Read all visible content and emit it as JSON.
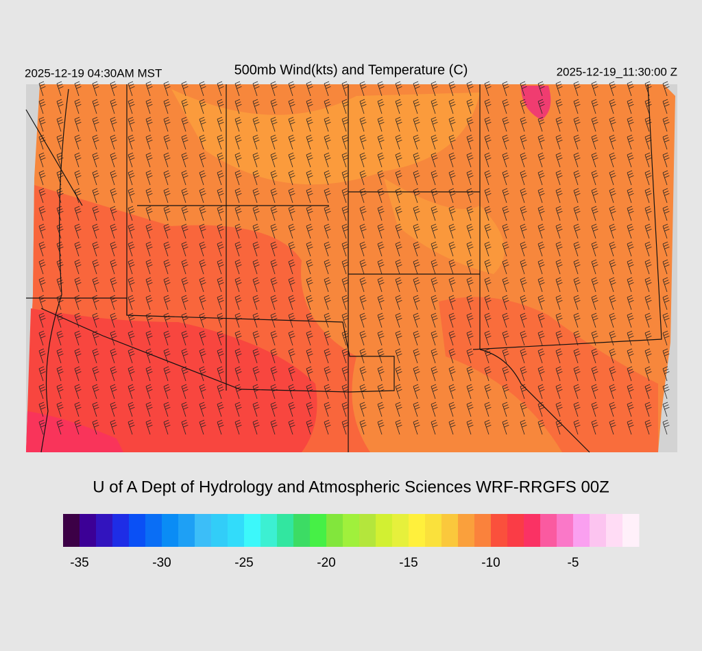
{
  "header": {
    "local_time": "2025-12-19 04:30AM MST",
    "title": "500mb Wind(kts) and Temperature (C)",
    "utc_time": "2025-12-19_11:30:00 Z"
  },
  "credit": "U of A Dept of Hydrology and Atmospheric Sciences WRF-RRGFS 00Z",
  "colorbar": {
    "lim": [
      -36,
      -1
    ],
    "ticks": [
      -35,
      -30,
      -25,
      -20,
      -15,
      -10,
      -5
    ],
    "colors": [
      "#3c0046",
      "#3c0096",
      "#3214be",
      "#1e2de6",
      "#0a50f5",
      "#0a6ef5",
      "#0a8cf5",
      "#1ea0f5",
      "#3cbef8",
      "#32cdf8",
      "#32dcfa",
      "#3cf8fa",
      "#3cf0d2",
      "#32e6a0",
      "#3cdc64",
      "#46f046",
      "#82e63c",
      "#a0f03c",
      "#b4e63c",
      "#d2f032",
      "#e6f03c",
      "#fff03c",
      "#fae13c",
      "#fac83c",
      "#faa03c",
      "#fa823c",
      "#fa503c",
      "#fa3c46",
      "#fa3264",
      "#fa5aa0",
      "#fa78c8",
      "#faa0f0",
      "#fcc4f0",
      "#ffdcf5",
      "#fff0fa"
    ]
  }
}
